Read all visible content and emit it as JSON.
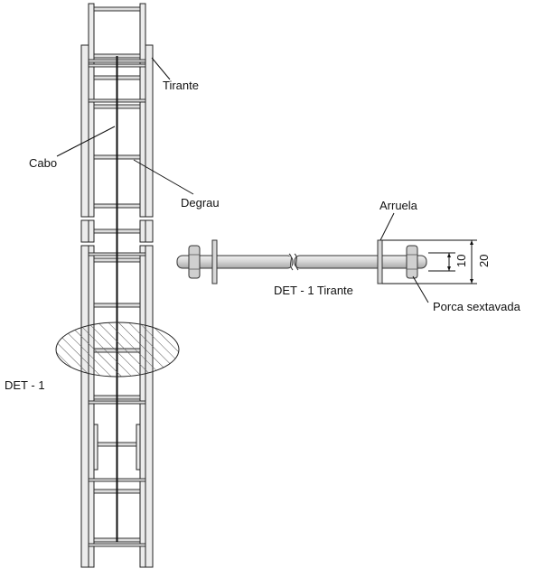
{
  "labels": {
    "tirante": "Tirante",
    "cabo": "Cabo",
    "degrau": "Degrau",
    "det_marker": "DET - 1",
    "arruela": "Arruela",
    "det_caption": "DET - 1 Tirante",
    "porca": "Porca sextavada",
    "dim_10": "10",
    "dim_20": "20"
  }
}
